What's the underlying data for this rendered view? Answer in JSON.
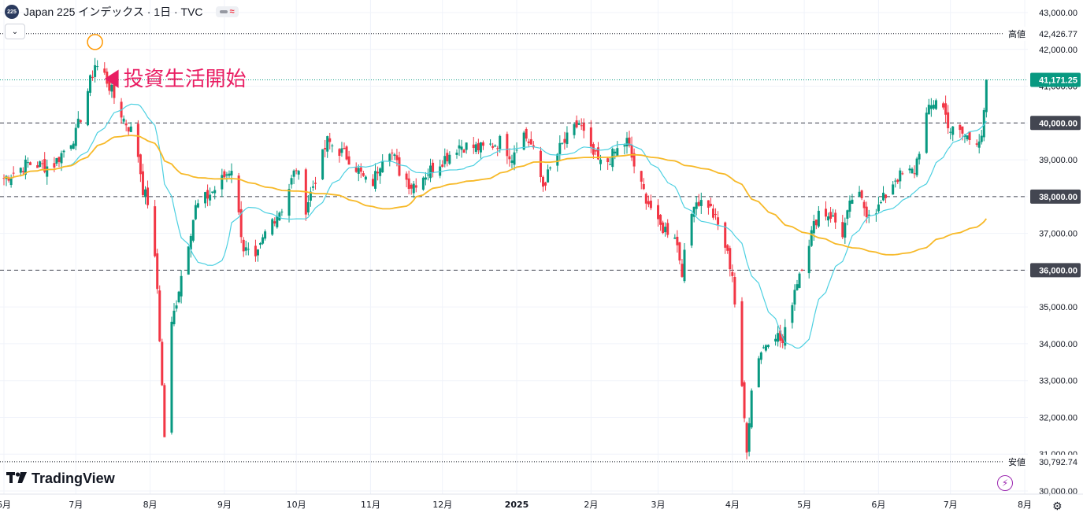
{
  "header": {
    "symbol_badge": "225",
    "title": "Japan 225 インデックス · 1日 · TVC",
    "indicator_glyph": "≈"
  },
  "annotation": {
    "text": "投資生活開始"
  },
  "logo": {
    "text": "TradingView"
  },
  "icons": {
    "collapse": "chevron-down-icon",
    "bolt": "bolt-icon",
    "settings": "gear-icon"
  },
  "chart_data": {
    "type": "candlestick",
    "title": "",
    "ylim": [
      29900,
      43200
    ],
    "y_ticks": [
      "43,000.00",
      "42,000.00",
      "41,000.00",
      "40,000.00",
      "39,000.00",
      "38,000.00",
      "37,000.00",
      "36,000.00",
      "35,000.00",
      "34,000.00",
      "33,000.00",
      "32,000.00",
      "31,000.00",
      "30,000.00"
    ],
    "x_ticks": [
      "6月",
      "7月",
      "8月",
      "9月",
      "10月",
      "11月",
      "12月",
      "2025",
      "2月",
      "3月",
      "4月",
      "5月",
      "6月",
      "7月",
      "8月"
    ],
    "x_tick_days": [
      0,
      30,
      61,
      92,
      122,
      153,
      183,
      214,
      245,
      273,
      304,
      334,
      365,
      395,
      426
    ],
    "markers": [
      {
        "label": "高値",
        "value": "42,426.77",
        "price": 42426.77,
        "style": "dotted",
        "color": "#131722"
      },
      {
        "label": "",
        "value": "41,171.25",
        "price": 41171.25,
        "style": "dotted",
        "color": "#089981"
      },
      {
        "label": "",
        "value": "40,000.00",
        "price": 40000,
        "style": "dashed",
        "color": "#434651"
      },
      {
        "label": "",
        "value": "38,000.00",
        "price": 38000,
        "style": "dashed",
        "color": "#434651"
      },
      {
        "label": "",
        "value": "36,000.00",
        "price": 36000,
        "style": "dashed",
        "color": "#434651"
      },
      {
        "label": "安値",
        "value": "30,792.74",
        "price": 30792.74,
        "style": "dotted",
        "color": "#131722"
      }
    ],
    "colors": {
      "up": "#089981",
      "down": "#f23645",
      "ma_short": "#4dd0e1",
      "ma_long": "#f7b928",
      "annotation": "#e91e63",
      "high_marker": "#ff9800"
    },
    "close_path": [
      [
        0,
        38500
      ],
      [
        10,
        38900
      ],
      [
        20,
        38800
      ],
      [
        30,
        39700
      ],
      [
        38,
        41600
      ],
      [
        42,
        41300
      ],
      [
        50,
        40100
      ],
      [
        55,
        39600
      ],
      [
        58,
        38200
      ],
      [
        61,
        37700
      ],
      [
        64,
        35500
      ],
      [
        67,
        31500
      ],
      [
        70,
        34500
      ],
      [
        75,
        36200
      ],
      [
        80,
        37700
      ],
      [
        88,
        38200
      ],
      [
        95,
        38800
      ],
      [
        100,
        36600
      ],
      [
        105,
        36200
      ],
      [
        110,
        37200
      ],
      [
        116,
        37700
      ],
      [
        122,
        38800
      ],
      [
        126,
        37700
      ],
      [
        135,
        39500
      ],
      [
        145,
        39000
      ],
      [
        153,
        38200
      ],
      [
        160,
        39500
      ],
      [
        165,
        38700
      ],
      [
        170,
        38300
      ],
      [
        183,
        39000
      ],
      [
        190,
        39400
      ],
      [
        200,
        39300
      ],
      [
        207,
        39500
      ],
      [
        212,
        39100
      ],
      [
        216,
        39800
      ],
      [
        220,
        39400
      ],
      [
        225,
        38300
      ],
      [
        232,
        39300
      ],
      [
        240,
        40000
      ],
      [
        245,
        39200
      ],
      [
        250,
        38800
      ],
      [
        255,
        39200
      ],
      [
        260,
        39500
      ],
      [
        265,
        38400
      ],
      [
        270,
        37700
      ],
      [
        273,
        37200
      ],
      [
        280,
        37000
      ],
      [
        283,
        36000
      ],
      [
        288,
        37900
      ],
      [
        294,
        37800
      ],
      [
        300,
        36900
      ],
      [
        304,
        35900
      ],
      [
        308,
        32700
      ],
      [
        310,
        31200
      ],
      [
        313,
        33500
      ],
      [
        317,
        33900
      ],
      [
        321,
        34400
      ],
      [
        325,
        34000
      ],
      [
        330,
        35500
      ],
      [
        334,
        36400
      ],
      [
        340,
        37600
      ],
      [
        345,
        37500
      ],
      [
        350,
        37000
      ],
      [
        355,
        38200
      ],
      [
        360,
        37600
      ],
      [
        365,
        37700
      ],
      [
        372,
        38500
      ],
      [
        380,
        38700
      ],
      [
        385,
        40200
      ],
      [
        390,
        40800
      ],
      [
        395,
        39800
      ],
      [
        400,
        39700
      ],
      [
        405,
        39500
      ],
      [
        408,
        39700
      ],
      [
        411,
        41170
      ]
    ]
  }
}
